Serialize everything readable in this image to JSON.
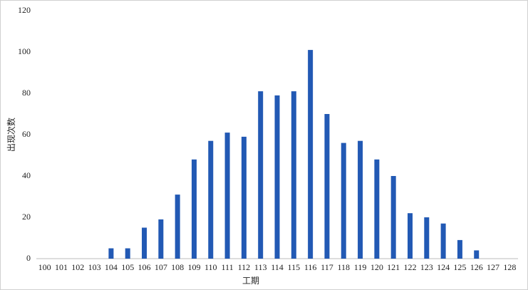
{
  "chart_data": {
    "type": "bar",
    "x_label": "工期",
    "y_label": "出现次数",
    "categories": [
      "100",
      "101",
      "102",
      "103",
      "104",
      "105",
      "106",
      "107",
      "108",
      "109",
      "110",
      "111",
      "112",
      "113",
      "114",
      "115",
      "116",
      "117",
      "118",
      "119",
      "120",
      "121",
      "122",
      "123",
      "124",
      "125",
      "126",
      "127",
      "128"
    ],
    "values": [
      0,
      0,
      0,
      0,
      5,
      5,
      15,
      19,
      31,
      48,
      57,
      61,
      59,
      81,
      79,
      81,
      101,
      70,
      56,
      57,
      48,
      40,
      22,
      20,
      17,
      9,
      4,
      0,
      0
    ],
    "color": "#2259b4",
    "ylim": [
      0,
      120
    ],
    "yticks": [
      0,
      20,
      40,
      60,
      80,
      100,
      120
    ],
    "grid": false
  }
}
